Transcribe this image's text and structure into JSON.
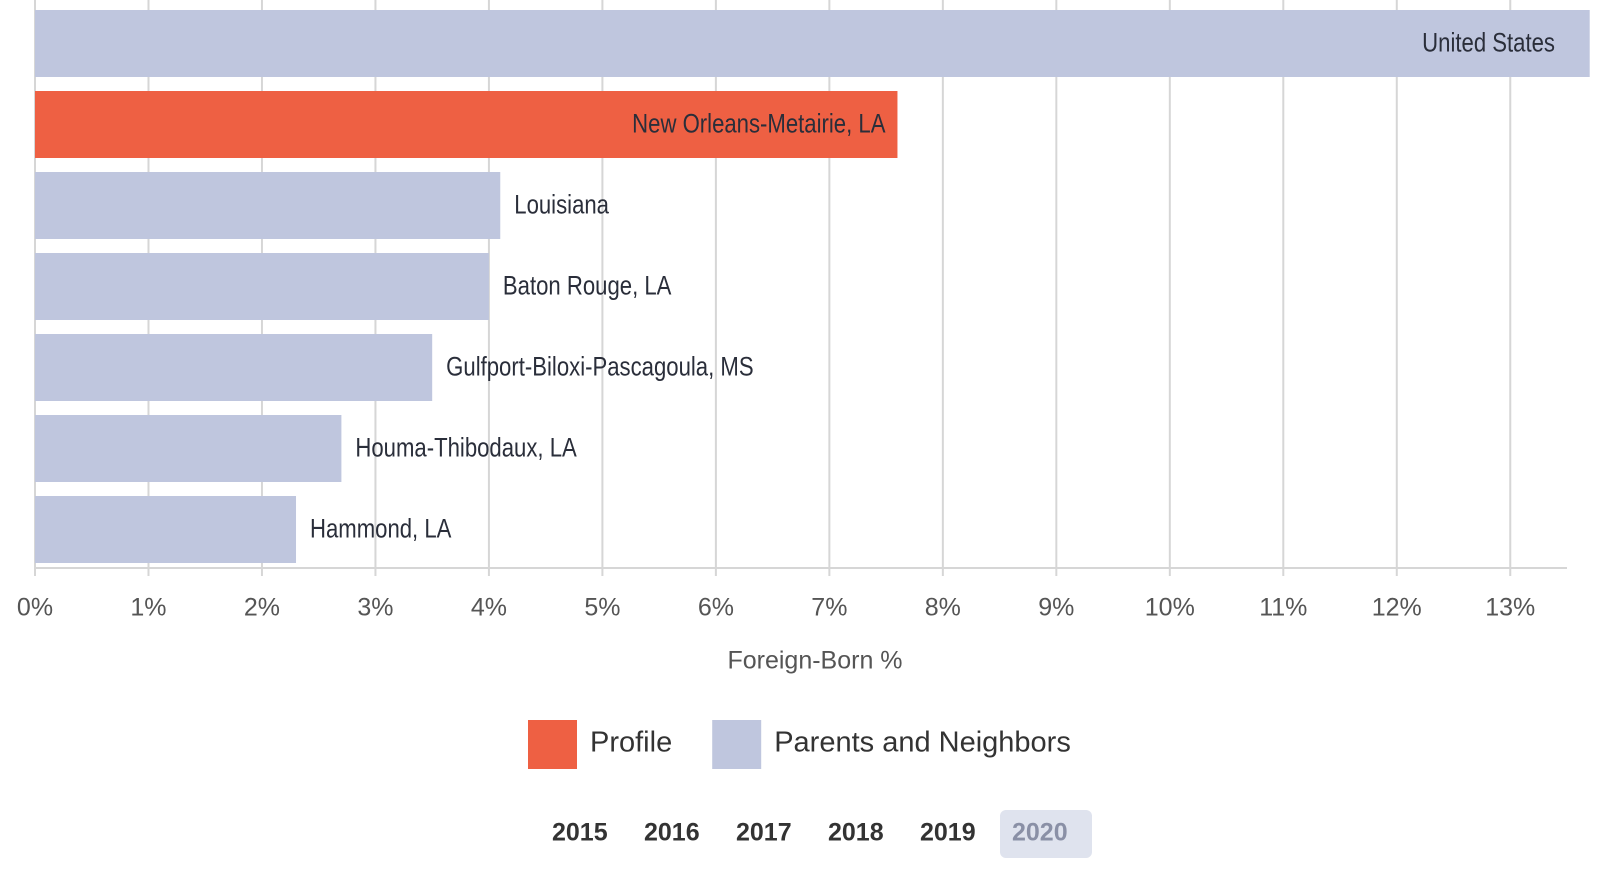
{
  "chart_data": {
    "type": "bar",
    "orientation": "horizontal",
    "categories": [
      "United States",
      "New Orleans-Metairie, LA",
      "Louisiana",
      "Baton Rouge, LA",
      "Gulfport-Biloxi-Pascagoula, MS",
      "Houma-Thibodaux, LA",
      "Hammond, LA"
    ],
    "values": [
      13.7,
      7.6,
      4.1,
      4.0,
      3.5,
      2.7,
      2.3
    ],
    "bar_colors": [
      "#bfc6de",
      "#ee6043",
      "#bfc6de",
      "#bfc6de",
      "#bfc6de",
      "#bfc6de",
      "#bfc6de"
    ],
    "xlim": [
      0,
      13.5
    ],
    "xticks": [
      {
        "value": 0,
        "label": "0%"
      },
      {
        "value": 1,
        "label": "1%"
      },
      {
        "value": 2,
        "label": "2%"
      },
      {
        "value": 3,
        "label": "3%"
      },
      {
        "value": 4,
        "label": "4%"
      },
      {
        "value": 5,
        "label": "5%"
      },
      {
        "value": 6,
        "label": "6%"
      },
      {
        "value": 7,
        "label": "7%"
      },
      {
        "value": 8,
        "label": "8%"
      },
      {
        "value": 9,
        "label": "9%"
      },
      {
        "value": 10,
        "label": "10%"
      },
      {
        "value": 11,
        "label": "11%"
      },
      {
        "value": 12,
        "label": "12%"
      },
      {
        "value": 13,
        "label": "13%"
      }
    ],
    "grid": true,
    "x_label": "Foreign-Born %",
    "legend": [
      {
        "label": "Profile",
        "color": "#ee6043"
      },
      {
        "label": "Parents and Neighbors",
        "color": "#bfc6de"
      }
    ],
    "years": [
      "2015",
      "2016",
      "2017",
      "2018",
      "2019",
      "2020"
    ],
    "selected_year": "2020"
  }
}
